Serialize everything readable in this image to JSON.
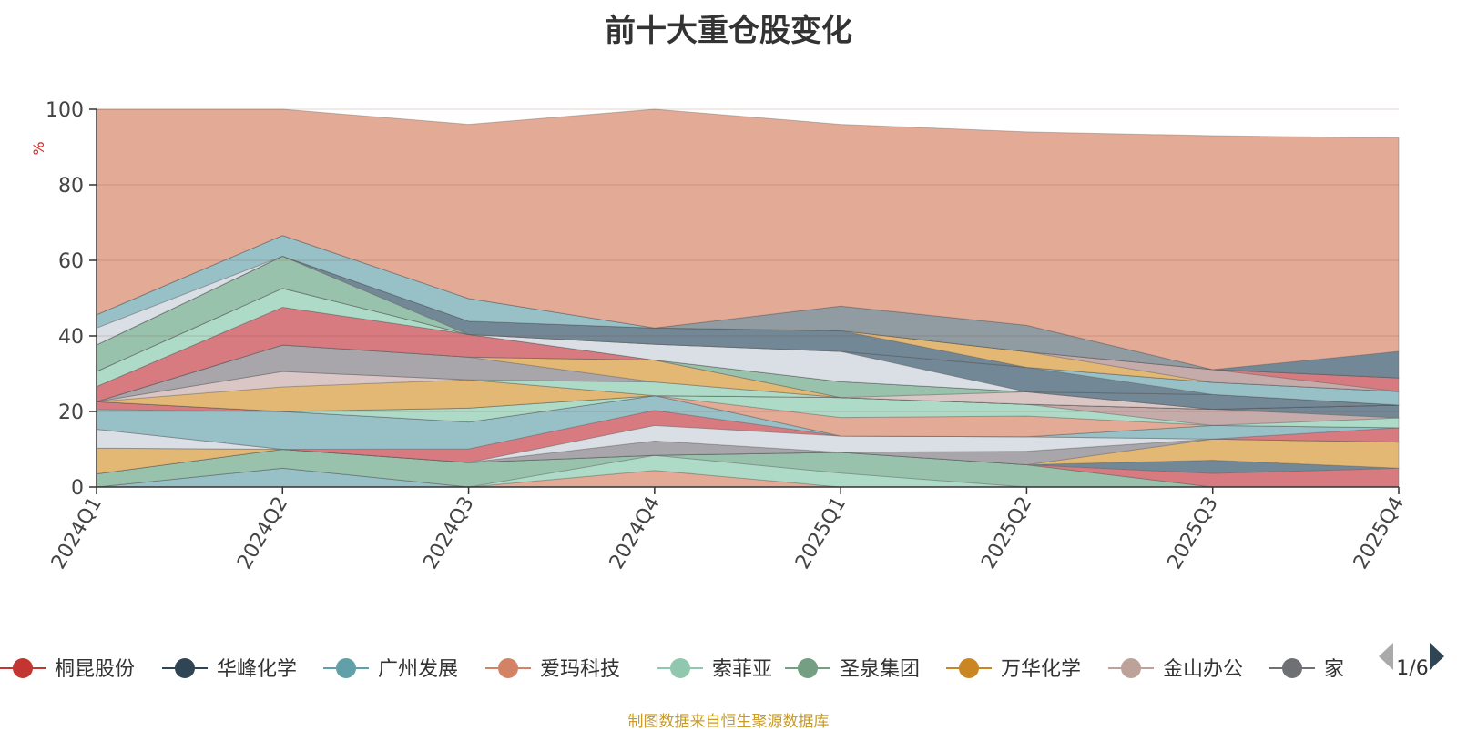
{
  "chart_data": {
    "type": "area",
    "title": "前十大重仓股变化",
    "ylabel": "%",
    "ylim": [
      0,
      100
    ],
    "yticks": [
      0,
      20,
      40,
      60,
      80,
      100
    ],
    "x": [
      "2024Q1",
      "2024Q2",
      "2024Q3",
      "2024Q4",
      "2025Q1",
      "2025Q2",
      "2025Q3",
      "2025Q4"
    ],
    "stacked": true,
    "grid": true,
    "series": [
      {
        "name": "",
        "color": "#91bdc4",
        "values": [
          0,
          5,
          0,
          0,
          0,
          0,
          0,
          0
        ]
      },
      {
        "name": "",
        "color": "#e1a590",
        "values": [
          0,
          0,
          0,
          4.4,
          0,
          0,
          0,
          0
        ]
      },
      {
        "name": "",
        "color": "#a9d9c4",
        "values": [
          0,
          0,
          0,
          4,
          3.7,
          0,
          0,
          0
        ]
      },
      {
        "name": "",
        "color": "#92bfa7",
        "values": [
          3.5,
          5,
          6.5,
          0,
          5.5,
          5.9,
          0,
          0
        ]
      },
      {
        "name": "",
        "color": "#c7d1d3",
        "values": [
          0,
          0,
          0,
          0,
          0,
          0,
          0,
          0
        ]
      },
      {
        "name": "",
        "color": "#d6747a",
        "values": [
          0,
          0,
          0,
          0,
          0,
          0,
          3.6,
          5
        ]
      },
      {
        "name": "",
        "color": "#6c8290",
        "values": [
          0,
          0,
          0,
          0,
          0,
          0,
          3.5,
          0
        ]
      },
      {
        "name": "",
        "color": "#e1b46e",
        "values": [
          6.8,
          0,
          0,
          0,
          0,
          0,
          5.6,
          6.9
        ]
      },
      {
        "name": "",
        "color": "#a3a0a6",
        "values": [
          0,
          0,
          0,
          3.8,
          0,
          3.6,
          0,
          0
        ]
      },
      {
        "name": "",
        "color": "#d8dde4",
        "values": [
          5,
          0,
          0,
          4.1,
          4.3,
          3.8,
          0,
          0
        ]
      },
      {
        "name": "",
        "color": "#d6747a",
        "values": [
          0,
          0,
          3.6,
          4,
          0,
          0,
          0,
          3.8
        ]
      },
      {
        "name": "",
        "color": "#91bdc4",
        "values": [
          5.2,
          10,
          7.1,
          3.9,
          0,
          0,
          3.6,
          0
        ]
      },
      {
        "name": "",
        "color": "#d6747a",
        "values": [
          2.1,
          0,
          0,
          0,
          0,
          0,
          0,
          0
        ]
      },
      {
        "name": "",
        "color": "#e1a590",
        "values": [
          0,
          0,
          0,
          0,
          4.9,
          5.5,
          0,
          0
        ]
      },
      {
        "name": "",
        "color": "#a9d9c4",
        "values": [
          0,
          0,
          3.7,
          0,
          5.3,
          3.1,
          0,
          2.6
        ]
      },
      {
        "name": "",
        "color": "#c3a7a7",
        "values": [
          0,
          0,
          0,
          0,
          0,
          0,
          4.3,
          0
        ]
      },
      {
        "name": "",
        "color": "#6c8290",
        "values": [
          0,
          0,
          0,
          0,
          0,
          0,
          0,
          3.4
        ]
      },
      {
        "name": "",
        "color": "#e1b46e",
        "values": [
          0,
          6.5,
          7.5,
          0,
          0,
          0,
          0,
          0
        ]
      },
      {
        "name": "",
        "color": "#d8c3c1",
        "values": [
          0,
          4.1,
          0,
          0,
          0,
          0,
          0,
          0
        ]
      },
      {
        "name": "",
        "color": "#a9d9c4",
        "values": [
          0,
          0,
          0,
          3.6,
          0,
          0,
          0,
          0
        ]
      },
      {
        "name": "",
        "color": "#a3a0a6",
        "values": [
          0,
          7,
          6,
          0,
          0,
          0,
          0,
          0
        ]
      },
      {
        "name": "",
        "color": "#e1b46e",
        "values": [
          0,
          0,
          0,
          5.8,
          0,
          0,
          0,
          0
        ]
      },
      {
        "name": "",
        "color": "#d8c3c1",
        "values": [
          0,
          0,
          0,
          0,
          0,
          3.3,
          0,
          0
        ]
      },
      {
        "name": "",
        "color": "#92bfa7",
        "values": [
          0,
          0,
          0,
          0,
          4.2,
          0,
          0,
          0
        ]
      },
      {
        "name": "",
        "color": "#d6747a",
        "values": [
          4,
          10,
          6,
          0,
          0,
          0,
          0,
          0
        ]
      },
      {
        "name": "",
        "color": "#6c8290",
        "values": [
          0,
          0,
          0,
          0,
          0,
          0,
          3.9,
          0
        ]
      },
      {
        "name": "",
        "color": "#a9d9c4",
        "values": [
          4,
          5,
          0,
          0,
          0,
          0,
          0,
          0
        ]
      },
      {
        "name": "",
        "color": "#d8dde4",
        "values": [
          0,
          0,
          0,
          4.2,
          8,
          0,
          0,
          0
        ]
      },
      {
        "name": "",
        "color": "#6c8290",
        "values": [
          0,
          0,
          0,
          0,
          0,
          6.5,
          0,
          0
        ]
      },
      {
        "name": "",
        "color": "#91bdc4",
        "values": [
          0,
          0,
          0,
          0,
          0,
          0,
          3.2,
          3.6
        ]
      },
      {
        "name": "",
        "color": "#92bfa7",
        "values": [
          7,
          8.5,
          0,
          0,
          0,
          0,
          0,
          0
        ]
      },
      {
        "name": "",
        "color": "#6c8290",
        "values": [
          0,
          0,
          3.5,
          4.3,
          5.5,
          0,
          0,
          0
        ]
      },
      {
        "name": "",
        "color": "#e1b46e",
        "values": [
          0,
          0,
          0,
          0,
          0,
          4.1,
          0,
          0
        ]
      },
      {
        "name": "",
        "color": "#c3a7a7",
        "values": [
          0,
          0,
          0,
          0,
          0,
          0,
          3.4,
          0
        ]
      },
      {
        "name": "",
        "color": "#d6747a",
        "values": [
          0,
          0,
          0,
          0,
          0,
          0,
          0,
          3.6
        ]
      },
      {
        "name": "",
        "color": "#d8dde4",
        "values": [
          4.5,
          0,
          0,
          0,
          0,
          0,
          0,
          0
        ]
      },
      {
        "name": "",
        "color": "#91bdc4",
        "values": [
          3.5,
          5.5,
          6,
          0,
          0,
          0,
          0,
          0
        ]
      },
      {
        "name": "",
        "color": "#8a979d",
        "values": [
          0,
          0,
          0,
          0,
          6.5,
          7,
          0,
          0
        ]
      },
      {
        "name": "",
        "color": "#6c8290",
        "values": [
          0,
          0,
          0,
          0,
          0,
          0,
          0,
          7
        ]
      },
      {
        "name": "",
        "color": "#e1a590",
        "values": [
          54.4,
          33.4,
          46.1,
          57.9,
          48.1,
          51.2,
          61.9,
          56.5
        ]
      }
    ]
  },
  "legend": {
    "items": [
      {
        "label": "桐昆股份",
        "color": "#c23531"
      },
      {
        "label": "华峰化学",
        "color": "#2f4554"
      },
      {
        "label": "广州发展",
        "color": "#61a0a8"
      },
      {
        "label": "爱玛科技",
        "color": "#d48265"
      },
      {
        "label": "索菲亚",
        "color": "#91c7ae"
      },
      {
        "label": "圣泉集团",
        "color": "#749f83"
      },
      {
        "label": "万华化学",
        "color": "#ca8622"
      },
      {
        "label": "金山办公",
        "color": "#bda29a"
      },
      {
        "label": "家",
        "color": "#6e7074"
      }
    ],
    "page": "1/6"
  },
  "source_note": "制图数据来自恒生聚源数据库"
}
